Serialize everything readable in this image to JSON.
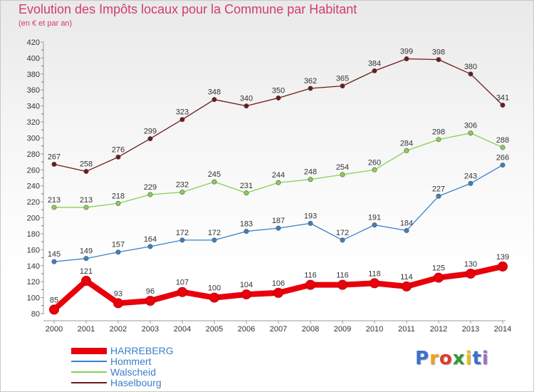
{
  "header": {
    "title": "Evolution des Impôts locaux pour la Commune par Habitant",
    "subtitle": "(en € et par an)"
  },
  "brand": {
    "letters": [
      "P",
      "r",
      "o",
      "x",
      "i",
      "t",
      "i"
    ],
    "colors": [
      "#3b6fd0",
      "#f0a020",
      "#e23a2a",
      "#2f9a3a",
      "#e0c020",
      "#3b6fd0",
      "#9a6fd0"
    ]
  },
  "chart_data": {
    "type": "line",
    "title": "Evolution des Impôts locaux pour la Commune par Habitant",
    "subtitle": "(en € et par an)",
    "xlabel": "",
    "ylabel": "",
    "x": [
      "2000",
      "2001",
      "2002",
      "2003",
      "2004",
      "2005",
      "2006",
      "2007",
      "2008",
      "2009",
      "2010",
      "2011",
      "2012",
      "2013",
      "2014"
    ],
    "ylim": [
      80,
      420
    ],
    "yticks": [
      80,
      100,
      120,
      140,
      160,
      180,
      200,
      220,
      240,
      260,
      280,
      300,
      320,
      340,
      360,
      380,
      400,
      420
    ],
    "grid": false,
    "legend_position": "bottom-left",
    "series": [
      {
        "name": "HARREBERG",
        "color": "#e8000b",
        "emphasis": true,
        "values": [
          85,
          121,
          93,
          96,
          107,
          100,
          104,
          106,
          116,
          116,
          118,
          114,
          125,
          130,
          139
        ]
      },
      {
        "name": "Hommert",
        "color": "#3a80c8",
        "emphasis": false,
        "values": [
          145,
          149,
          157,
          164,
          172,
          172,
          183,
          187,
          193,
          172,
          191,
          184,
          227,
          243,
          266
        ]
      },
      {
        "name": "Walscheid",
        "color": "#88d050",
        "emphasis": false,
        "values": [
          213,
          213,
          218,
          229,
          232,
          245,
          231,
          244,
          248,
          254,
          260,
          284,
          298,
          306,
          288
        ]
      },
      {
        "name": "Haselbourg",
        "color": "#6e1a1a",
        "emphasis": false,
        "values": [
          267,
          258,
          276,
          299,
          323,
          348,
          340,
          350,
          362,
          365,
          384,
          399,
          398,
          380,
          341
        ]
      }
    ]
  }
}
